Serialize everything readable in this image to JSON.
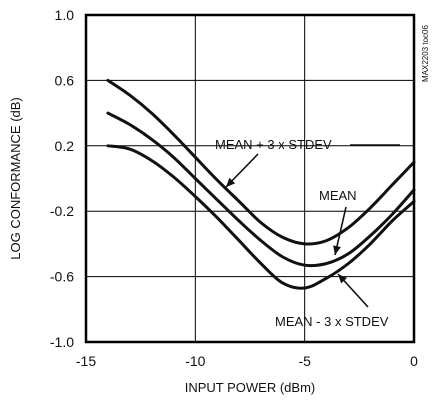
{
  "chart_data": {
    "type": "line",
    "xlabel": "INPUT POWER (dBm)",
    "ylabel": "LOG CONFORMANCE (dB)",
    "xlim": [
      -15,
      0
    ],
    "ylim": [
      -1.0,
      1.0
    ],
    "xticks": [
      -15,
      -10,
      -5,
      0
    ],
    "xtick_labels": [
      "-15",
      "-10",
      "-5",
      "0"
    ],
    "yticks": [
      -1.0,
      -0.6,
      -0.2,
      0.2,
      0.6,
      1.0
    ],
    "ytick_labels": [
      "-1.0",
      "-0.6",
      "-0.2",
      "0.2",
      "0.6",
      "1.0"
    ],
    "grid": true,
    "figure_code": "MAX2203 toc06",
    "series": [
      {
        "name": "MEAN + 3 x STDEV",
        "x": [
          -14,
          -13,
          -12,
          -11,
          -10,
          -9,
          -8,
          -7,
          -6,
          -5,
          -4,
          -3,
          -2,
          -1,
          0
        ],
        "y": [
          0.6,
          0.51,
          0.4,
          0.27,
          0.13,
          -0.01,
          -0.14,
          -0.27,
          -0.36,
          -0.4,
          -0.38,
          -0.3,
          -0.18,
          -0.04,
          0.1
        ]
      },
      {
        "name": "MEAN",
        "x": [
          -14,
          -13,
          -12,
          -11,
          -10,
          -9,
          -8,
          -7,
          -6,
          -5,
          -4,
          -3,
          -2,
          -1,
          0
        ],
        "y": [
          0.4,
          0.33,
          0.24,
          0.13,
          0.0,
          -0.13,
          -0.26,
          -0.38,
          -0.48,
          -0.53,
          -0.52,
          -0.46,
          -0.35,
          -0.22,
          -0.07
        ]
      },
      {
        "name": "MEAN - 3 x STDEV",
        "x": [
          -14,
          -13,
          -12,
          -11,
          -10,
          -9,
          -8,
          -7,
          -6,
          -5,
          -4,
          -3,
          -2,
          -1,
          0
        ],
        "y": [
          0.2,
          0.18,
          0.11,
          0.01,
          -0.11,
          -0.24,
          -0.38,
          -0.52,
          -0.64,
          -0.67,
          -0.61,
          -0.52,
          -0.4,
          -0.26,
          -0.14
        ]
      }
    ]
  }
}
